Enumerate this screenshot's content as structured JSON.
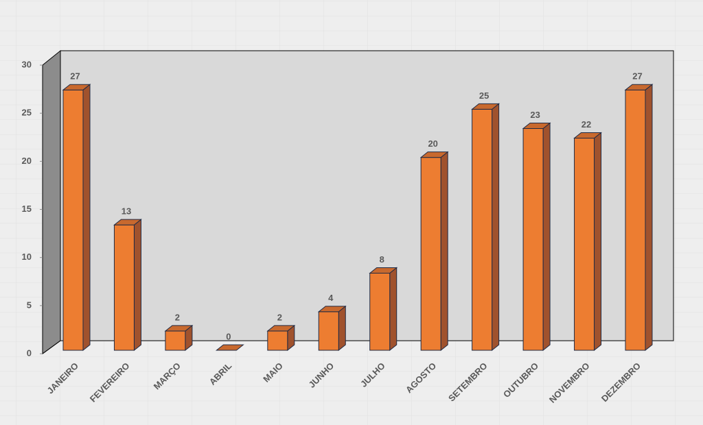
{
  "chart_data": {
    "type": "bar3d",
    "categories": [
      "JANEIRO",
      "FEVEREIRO",
      "MARÇO",
      "ABRIL",
      "MAIO",
      "JUNHO",
      "JULHO",
      "AGOSTO",
      "SETEMBRO",
      "OUTUBRO",
      "NOVEMBRO",
      "DEZEMBRO"
    ],
    "values": [
      27,
      13,
      2,
      0,
      2,
      4,
      8,
      20,
      25,
      23,
      22,
      27
    ],
    "color": "#ed7d31",
    "ylim": [
      0,
      30
    ],
    "yticks": [
      0,
      5,
      10,
      15,
      20,
      25,
      30
    ],
    "grid": false
  }
}
